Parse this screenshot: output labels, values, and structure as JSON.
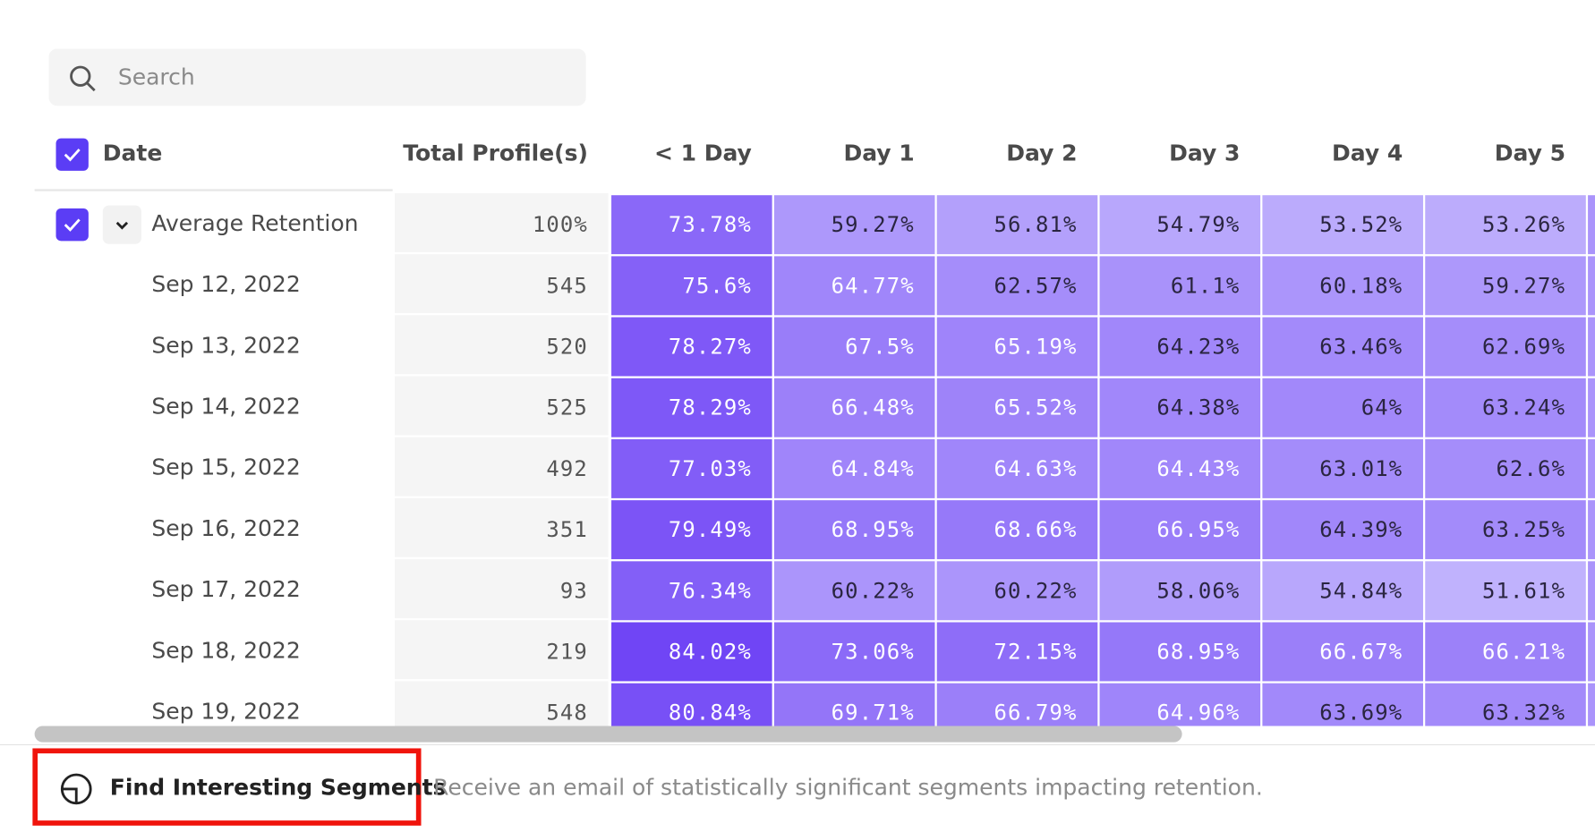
{
  "search": {
    "placeholder": "Search"
  },
  "table": {
    "columns": [
      "Date",
      "Total Profile(s)",
      "< 1 Day",
      "Day 1",
      "Day 2",
      "Day 3",
      "Day 4",
      "Day 5"
    ],
    "rows": [
      {
        "label": "Average Retention",
        "total": "100%",
        "values": [
          "73.78%",
          "59.27%",
          "56.81%",
          "54.79%",
          "53.52%",
          "53.26%"
        ]
      },
      {
        "label": "Sep 12, 2022",
        "total": "545",
        "values": [
          "75.6%",
          "64.77%",
          "62.57%",
          "61.1%",
          "60.18%",
          "59.27%"
        ]
      },
      {
        "label": "Sep 13, 2022",
        "total": "520",
        "values": [
          "78.27%",
          "67.5%",
          "65.19%",
          "64.23%",
          "63.46%",
          "62.69%"
        ]
      },
      {
        "label": "Sep 14, 2022",
        "total": "525",
        "values": [
          "78.29%",
          "66.48%",
          "65.52%",
          "64.38%",
          "64%",
          "63.24%"
        ]
      },
      {
        "label": "Sep 15, 2022",
        "total": "492",
        "values": [
          "77.03%",
          "64.84%",
          "64.63%",
          "64.43%",
          "63.01%",
          "62.6%"
        ]
      },
      {
        "label": "Sep 16, 2022",
        "total": "351",
        "values": [
          "79.49%",
          "68.95%",
          "68.66%",
          "66.95%",
          "64.39%",
          "63.25%"
        ]
      },
      {
        "label": "Sep 17, 2022",
        "total": "93",
        "values": [
          "76.34%",
          "60.22%",
          "60.22%",
          "58.06%",
          "54.84%",
          "51.61%"
        ]
      },
      {
        "label": "Sep 18, 2022",
        "total": "219",
        "values": [
          "84.02%",
          "73.06%",
          "72.15%",
          "68.95%",
          "66.67%",
          "66.21%"
        ]
      },
      {
        "label": "Sep 19, 2022",
        "total": "548",
        "values": [
          "80.84%",
          "69.71%",
          "66.79%",
          "64.96%",
          "63.69%",
          "63.32%"
        ]
      }
    ]
  },
  "footer": {
    "button": "Find Interesting Segments",
    "description": "Receive an email of statistically significant segments impacting retention."
  }
}
